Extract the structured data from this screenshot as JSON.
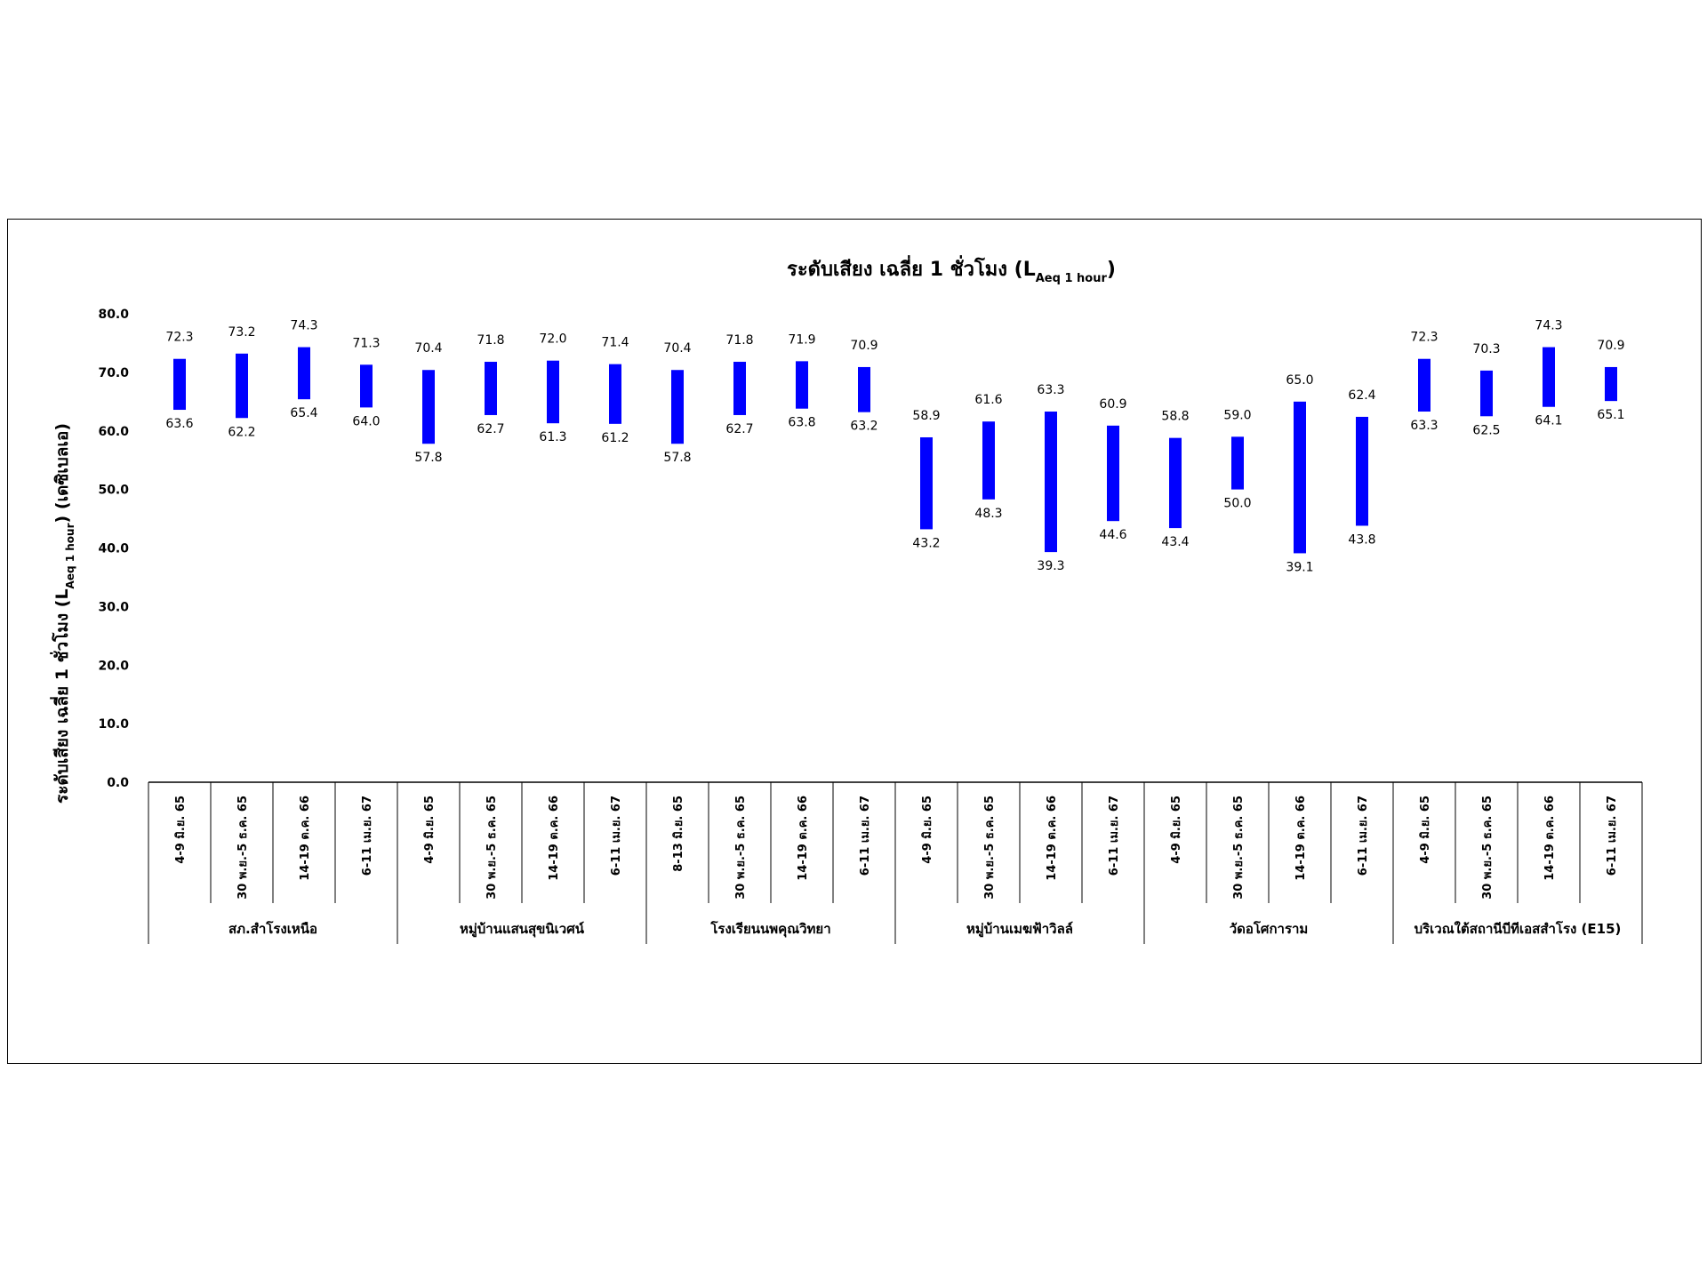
{
  "chart_data": {
    "type": "bar",
    "subtype": "floating-range",
    "title": "ระดับเสียง เฉลี่ย 1 ชั่วโมง (L",
    "title_sub": "Aeq 1 hour",
    "title_end": ")",
    "ylabel": "ระดับเสียง เฉลี่ย 1 ชั่วโมง (L",
    "ylabel_sub": "Aeq 1 hour",
    "ylabel_end": ")  (เดซิเบลเอ)",
    "ylim": [
      0,
      80
    ],
    "yticks": [
      "0.0",
      "10.0",
      "20.0",
      "30.0",
      "40.0",
      "50.0",
      "60.0",
      "70.0",
      "80.0"
    ],
    "bar_color": "#0000FF",
    "groups": [
      {
        "name": "สภ.สำโรงเหนือ",
        "categories": [
          "4-9 มิ.ย. 65",
          "30 พ.ย.-5 ธ.ค. 65",
          "14-19 ต.ค. 66",
          "6-11 เม.ย. 67"
        ],
        "max": [
          "72.3",
          "73.2",
          "74.3",
          "71.3"
        ],
        "min": [
          "63.6",
          "62.2",
          "65.4",
          "64.0"
        ]
      },
      {
        "name": "หมู่บ้านแสนสุขนิเวศน์",
        "categories": [
          "4-9 มิ.ย. 65",
          "30 พ.ย.-5 ธ.ค. 65",
          "14-19 ต.ค. 66",
          "6-11 เม.ย. 67"
        ],
        "max": [
          "70.4",
          "71.8",
          "72.0",
          "71.4"
        ],
        "min": [
          "57.8",
          "62.7",
          "61.3",
          "61.2"
        ]
      },
      {
        "name": "โรงเรียนนพคุณวิทยา",
        "categories": [
          "8-13 มิ.ย. 65",
          "30 พ.ย.-5 ธ.ค. 65",
          "14-19 ต.ค. 66",
          "6-11 เม.ย. 67"
        ],
        "max": [
          "70.4",
          "71.8",
          "71.9",
          "70.9"
        ],
        "min": [
          "57.8",
          "62.7",
          "63.8",
          "63.2"
        ]
      },
      {
        "name": "หมู่บ้านเมฆฟ้าวิลล์",
        "categories": [
          "4-9 มิ.ย. 65",
          "30 พ.ย.-5 ธ.ค. 65",
          "14-19 ต.ค. 66",
          "6-11 เม.ย. 67"
        ],
        "max": [
          "58.9",
          "61.6",
          "63.3",
          "60.9"
        ],
        "min": [
          "43.2",
          "48.3",
          "39.3",
          "44.6"
        ]
      },
      {
        "name": "วัดอโศการาม",
        "categories": [
          "4-9 มิ.ย. 65",
          "30 พ.ย.-5 ธ.ค. 65",
          "14-19 ต.ค. 66",
          "6-11 เม.ย. 67"
        ],
        "max": [
          "58.8",
          "59.0",
          "65.0",
          "62.4"
        ],
        "min": [
          "43.4",
          "50.0",
          "39.1",
          "43.8"
        ]
      },
      {
        "name": "บริเวณใต้สถานีบีทีเอสสำโรง (E15)",
        "categories": [
          "4-9 มิ.ย. 65",
          "30 พ.ย.-5 ธ.ค. 65",
          "14-19 ต.ค. 66",
          "6-11 เม.ย. 67"
        ],
        "max": [
          "72.3",
          "70.3",
          "74.3",
          "70.9"
        ],
        "min": [
          "63.3",
          "62.5",
          "64.1",
          "65.1"
        ]
      }
    ]
  }
}
